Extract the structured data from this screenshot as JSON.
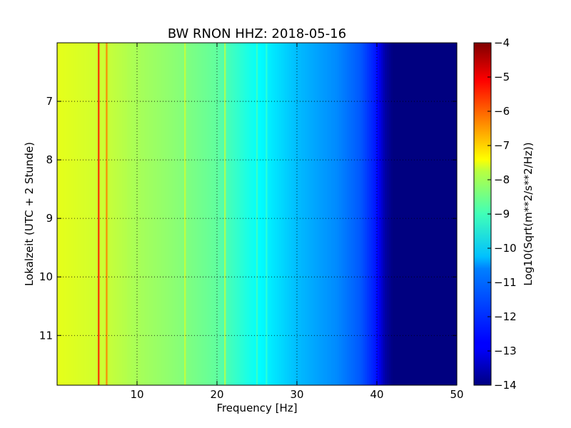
{
  "chart_data": {
    "type": "heatmap",
    "title": "BW RNON HHZ: 2018-05-16",
    "xlabel": "Frequency [Hz]",
    "ylabel": "Lokalzeit (UTC + 2 Stunde)",
    "xlim": [
      0,
      50
    ],
    "ylim": [
      11.85,
      6.0
    ],
    "y_axis_inverted": true,
    "xticks": [
      10,
      20,
      30,
      40,
      50
    ],
    "yticks": [
      7,
      8,
      9,
      10,
      11
    ],
    "grid": true,
    "colormap": "jet",
    "colorbar": {
      "label": "Log10(Sqrt(m**2/s**2/Hz))",
      "range": [
        -14,
        -4
      ],
      "ticks": [
        -4,
        -5,
        -6,
        -7,
        -8,
        -9,
        -10,
        -11,
        -12,
        -13,
        -14
      ]
    },
    "background_profile": {
      "frequency_hz": [
        0,
        5,
        10,
        15,
        20,
        25,
        30,
        35,
        38,
        40,
        41,
        42,
        50
      ],
      "level": [
        -8.0,
        -8.2,
        -8.6,
        -8.9,
        -9.3,
        -10.2,
        -10.9,
        -11.4,
        -11.9,
        -12.6,
        -13.6,
        -14.0,
        -14.0
      ]
    },
    "spectral_lines": [
      {
        "frequency_hz": 5.2,
        "level": -5.5
      },
      {
        "frequency_hz": 6.2,
        "level": -6.5
      },
      {
        "frequency_hz": 16.0,
        "level": -8.3
      },
      {
        "frequency_hz": 21.0,
        "level": -8.5
      },
      {
        "frequency_hz": 25.0,
        "level": -9.6
      },
      {
        "frequency_hz": 26.2,
        "level": -9.8
      }
    ]
  }
}
